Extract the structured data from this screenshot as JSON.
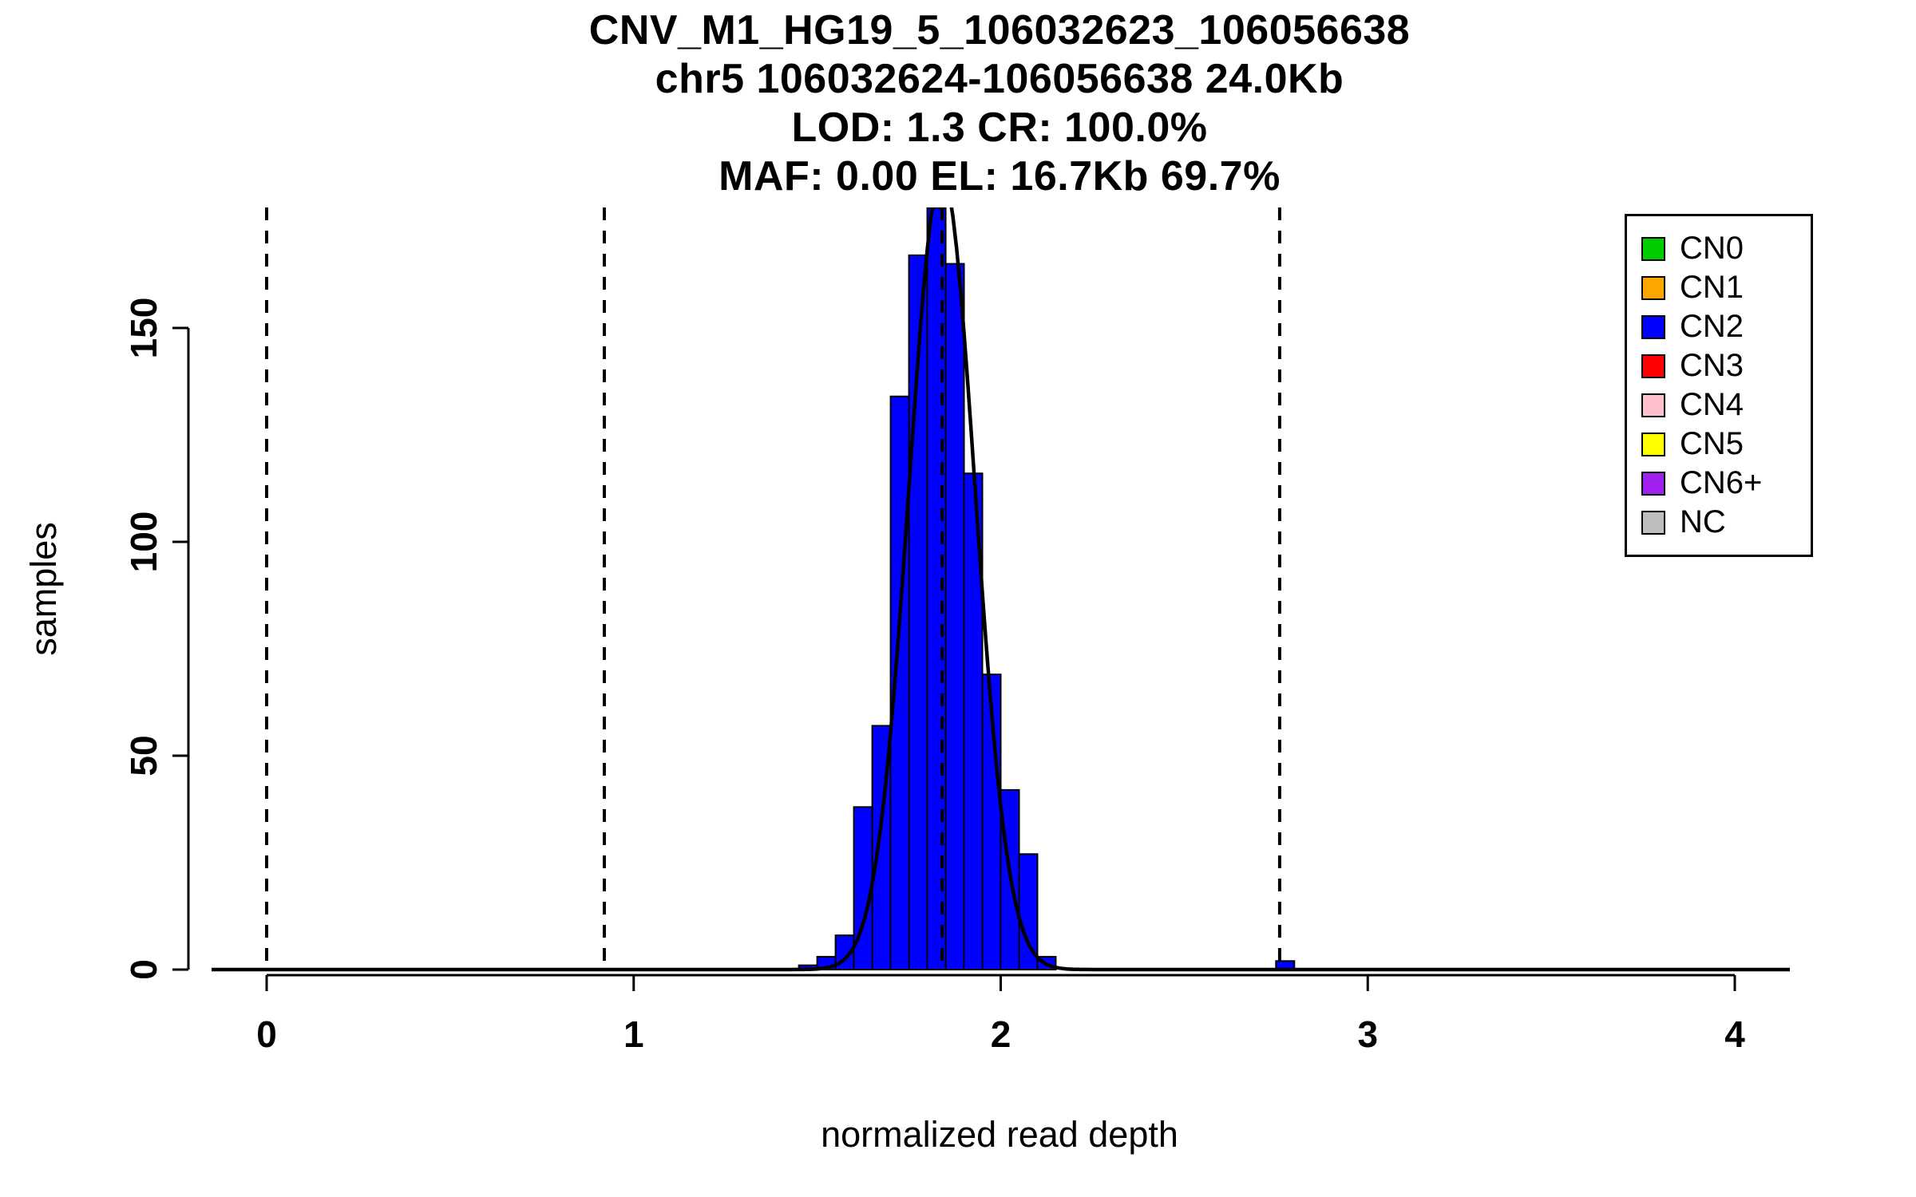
{
  "chart_data": {
    "type": "bar",
    "title_lines": [
      "CNV_M1_HG19_5_106032623_106056638",
      "chr5 106032624-106056638 24.0Kb",
      "LOD: 1.3 CR: 100.0%",
      "MAF: 0.00 EL: 16.7Kb 69.7%"
    ],
    "xlabel": "normalized read depth",
    "ylabel": "samples",
    "x_ticks": [
      0,
      1,
      2,
      3,
      4
    ],
    "y_ticks": [
      0,
      50,
      100,
      150
    ],
    "xlim": [
      -0.15,
      4.15
    ],
    "ylim": [
      0,
      178
    ],
    "grid": false,
    "legend_position": "top-right",
    "histogram": {
      "bin_width": 0.05,
      "fill": "#0000FF",
      "stroke": "#000000",
      "bins": [
        {
          "start": 1.45,
          "count": 1
        },
        {
          "start": 1.5,
          "count": 3
        },
        {
          "start": 1.55,
          "count": 8
        },
        {
          "start": 1.6,
          "count": 38
        },
        {
          "start": 1.65,
          "count": 57
        },
        {
          "start": 1.7,
          "count": 134
        },
        {
          "start": 1.75,
          "count": 167
        },
        {
          "start": 1.8,
          "count": 178
        },
        {
          "start": 1.85,
          "count": 165
        },
        {
          "start": 1.9,
          "count": 116
        },
        {
          "start": 1.95,
          "count": 69
        },
        {
          "start": 2.0,
          "count": 42
        },
        {
          "start": 2.05,
          "count": 27
        },
        {
          "start": 2.1,
          "count": 3
        },
        {
          "start": 2.75,
          "count": 2
        }
      ]
    },
    "curve": {
      "type": "gaussian",
      "mean": 1.84,
      "sd": 0.09,
      "peak": 186,
      "color": "#000000"
    },
    "vlines": {
      "x": [
        0,
        0.92,
        1.84,
        2.76
      ],
      "style": "dashed",
      "color": "#000000"
    },
    "legend": {
      "items": [
        {
          "label": "CN0",
          "color": "#00CD00"
        },
        {
          "label": "CN1",
          "color": "#FFA500"
        },
        {
          "label": "CN2",
          "color": "#0000FF"
        },
        {
          "label": "CN3",
          "color": "#FF0000"
        },
        {
          "label": "CN4",
          "color": "#FFC0CB"
        },
        {
          "label": "CN5",
          "color": "#FFFF00"
        },
        {
          "label": "CN6+",
          "color": "#A020F0"
        },
        {
          "label": "NC",
          "color": "#BEBEBE"
        }
      ]
    }
  }
}
